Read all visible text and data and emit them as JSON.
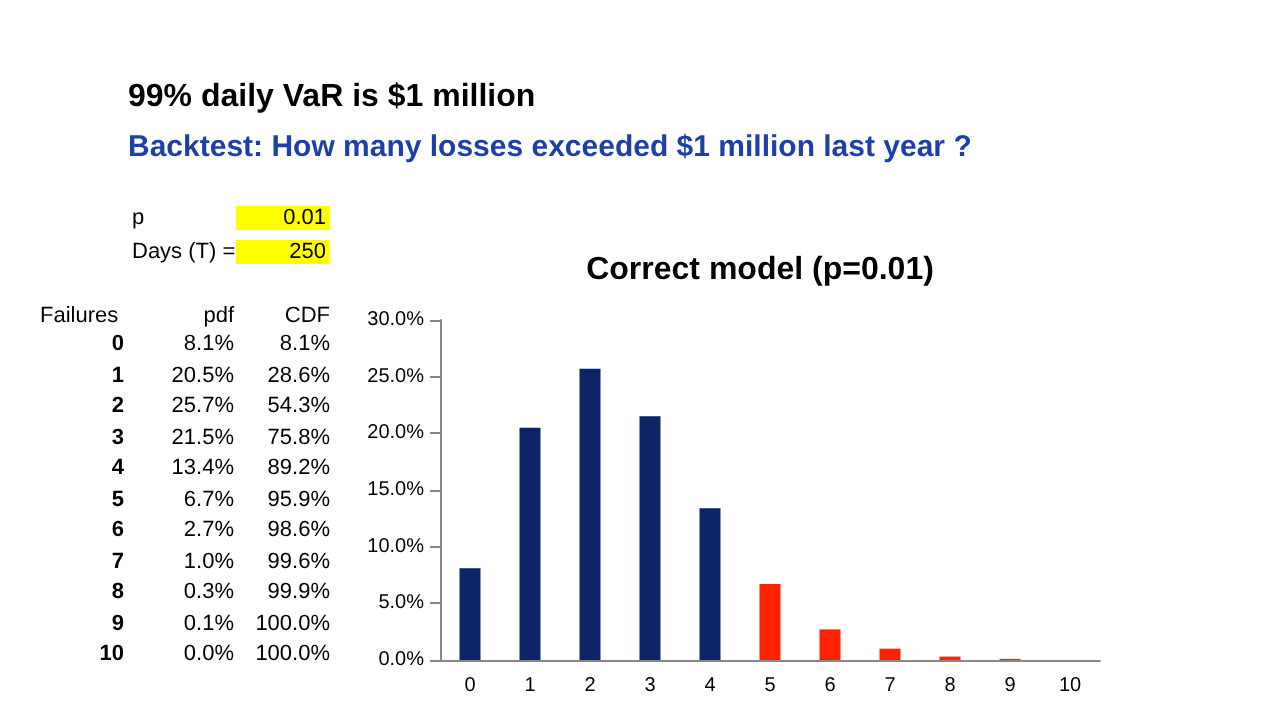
{
  "chart_data": {
    "type": "bar",
    "title": "Correct model (p=0.01)",
    "categories": [
      "0",
      "1",
      "2",
      "3",
      "4",
      "5",
      "6",
      "7",
      "8",
      "9",
      "10"
    ],
    "values": [
      8.1,
      20.5,
      25.7,
      21.5,
      13.4,
      6.7,
      2.7,
      1.0,
      0.3,
      0.1,
      0.0
    ],
    "colors": [
      "#0c2365",
      "#0c2365",
      "#0c2365",
      "#0c2365",
      "#0c2365",
      "#ff2200",
      "#ff2200",
      "#ff2200",
      "#ff2200",
      "#ff2200",
      "#ff2200"
    ],
    "ylim": [
      0,
      30
    ],
    "yticks": [
      {
        "value": 0,
        "label": "0.0%"
      },
      {
        "value": 5,
        "label": "5.0%"
      },
      {
        "value": 10,
        "label": "10.0%"
      },
      {
        "value": 15,
        "label": "15.0%"
      },
      {
        "value": 20,
        "label": "20.0%"
      },
      {
        "value": 25,
        "label": "25.0%"
      },
      {
        "value": 30,
        "label": "30.0%"
      }
    ],
    "grid": false,
    "annotations": [
      "99% daily VaR is $1 million",
      "Backtest: How many losses exceeded $1 million last year ?",
      "p",
      "0.01",
      "Days (T) =",
      "250",
      "Failures",
      "pdf",
      "CDF",
      "8.1%",
      "20.5%",
      "25.7%",
      "21.5%",
      "13.4%",
      "6.7%",
      "2.7%",
      "1.0%",
      "0.3%",
      "0.1%",
      "0.0%",
      "8.1%",
      "28.6%",
      "54.3%",
      "75.8%",
      "89.2%",
      "95.9%",
      "98.6%",
      "99.6%",
      "99.9%",
      "100.0%",
      "100.0%"
    ]
  }
}
